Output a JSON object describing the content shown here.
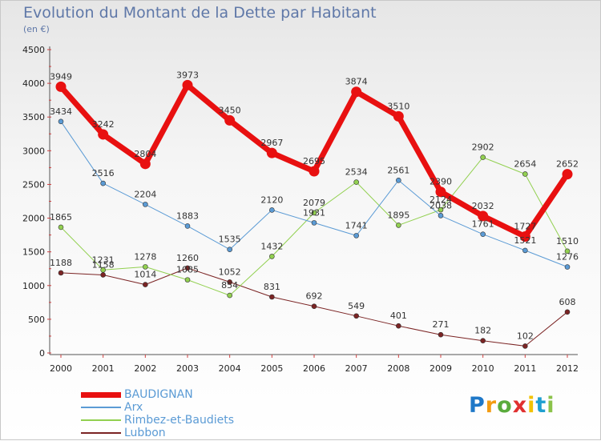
{
  "chart_data": {
    "type": "line",
    "title": "Evolution du Montant de la Dette par Habitant",
    "subtitle": "(en €)",
    "x": [
      "2000",
      "2001",
      "2002",
      "2003",
      "2004",
      "2005",
      "2006",
      "2007",
      "2008",
      "2009",
      "2010",
      "2011",
      "2012"
    ],
    "ylim": [
      0,
      4500
    ],
    "yticks": [
      0,
      500,
      1000,
      1500,
      2000,
      2500,
      3000,
      3500,
      4000,
      4500
    ],
    "grid": false,
    "legend_position": "bottom",
    "series": [
      {
        "name": "BAUDIGNAN",
        "color": "#e81010",
        "width": 7,
        "values": [
          3949,
          3242,
          2804,
          3973,
          3450,
          2967,
          2695,
          3874,
          3510,
          2390,
          2032,
          1727,
          2652
        ]
      },
      {
        "name": "Arx",
        "color": "#5b9bd5",
        "width": 1,
        "values": [
          3434,
          2516,
          2204,
          1883,
          1535,
          2120,
          1931,
          1741,
          2561,
          2038,
          1761,
          1521,
          1276
        ]
      },
      {
        "name": "Rimbez-et-Baudiets",
        "color": "#92d050",
        "width": 1,
        "values": [
          1865,
          1231,
          1278,
          1085,
          854,
          1432,
          2079,
          2534,
          1895,
          2124,
          2902,
          2654,
          1510
        ]
      },
      {
        "name": "Lubbon",
        "color": "#7b2424",
        "width": 1,
        "values": [
          1188,
          1158,
          1014,
          1260,
          1052,
          831,
          692,
          549,
          401,
          271,
          182,
          102,
          608
        ]
      }
    ]
  },
  "logo": {
    "letters": [
      "P",
      "r",
      "o",
      "x",
      "i",
      "t",
      "i"
    ],
    "colors": [
      "#1f78c8",
      "#f39c12",
      "#5aab3c",
      "#e03030",
      "#f2c200",
      "#1f9fd0",
      "#8bc34a"
    ]
  }
}
